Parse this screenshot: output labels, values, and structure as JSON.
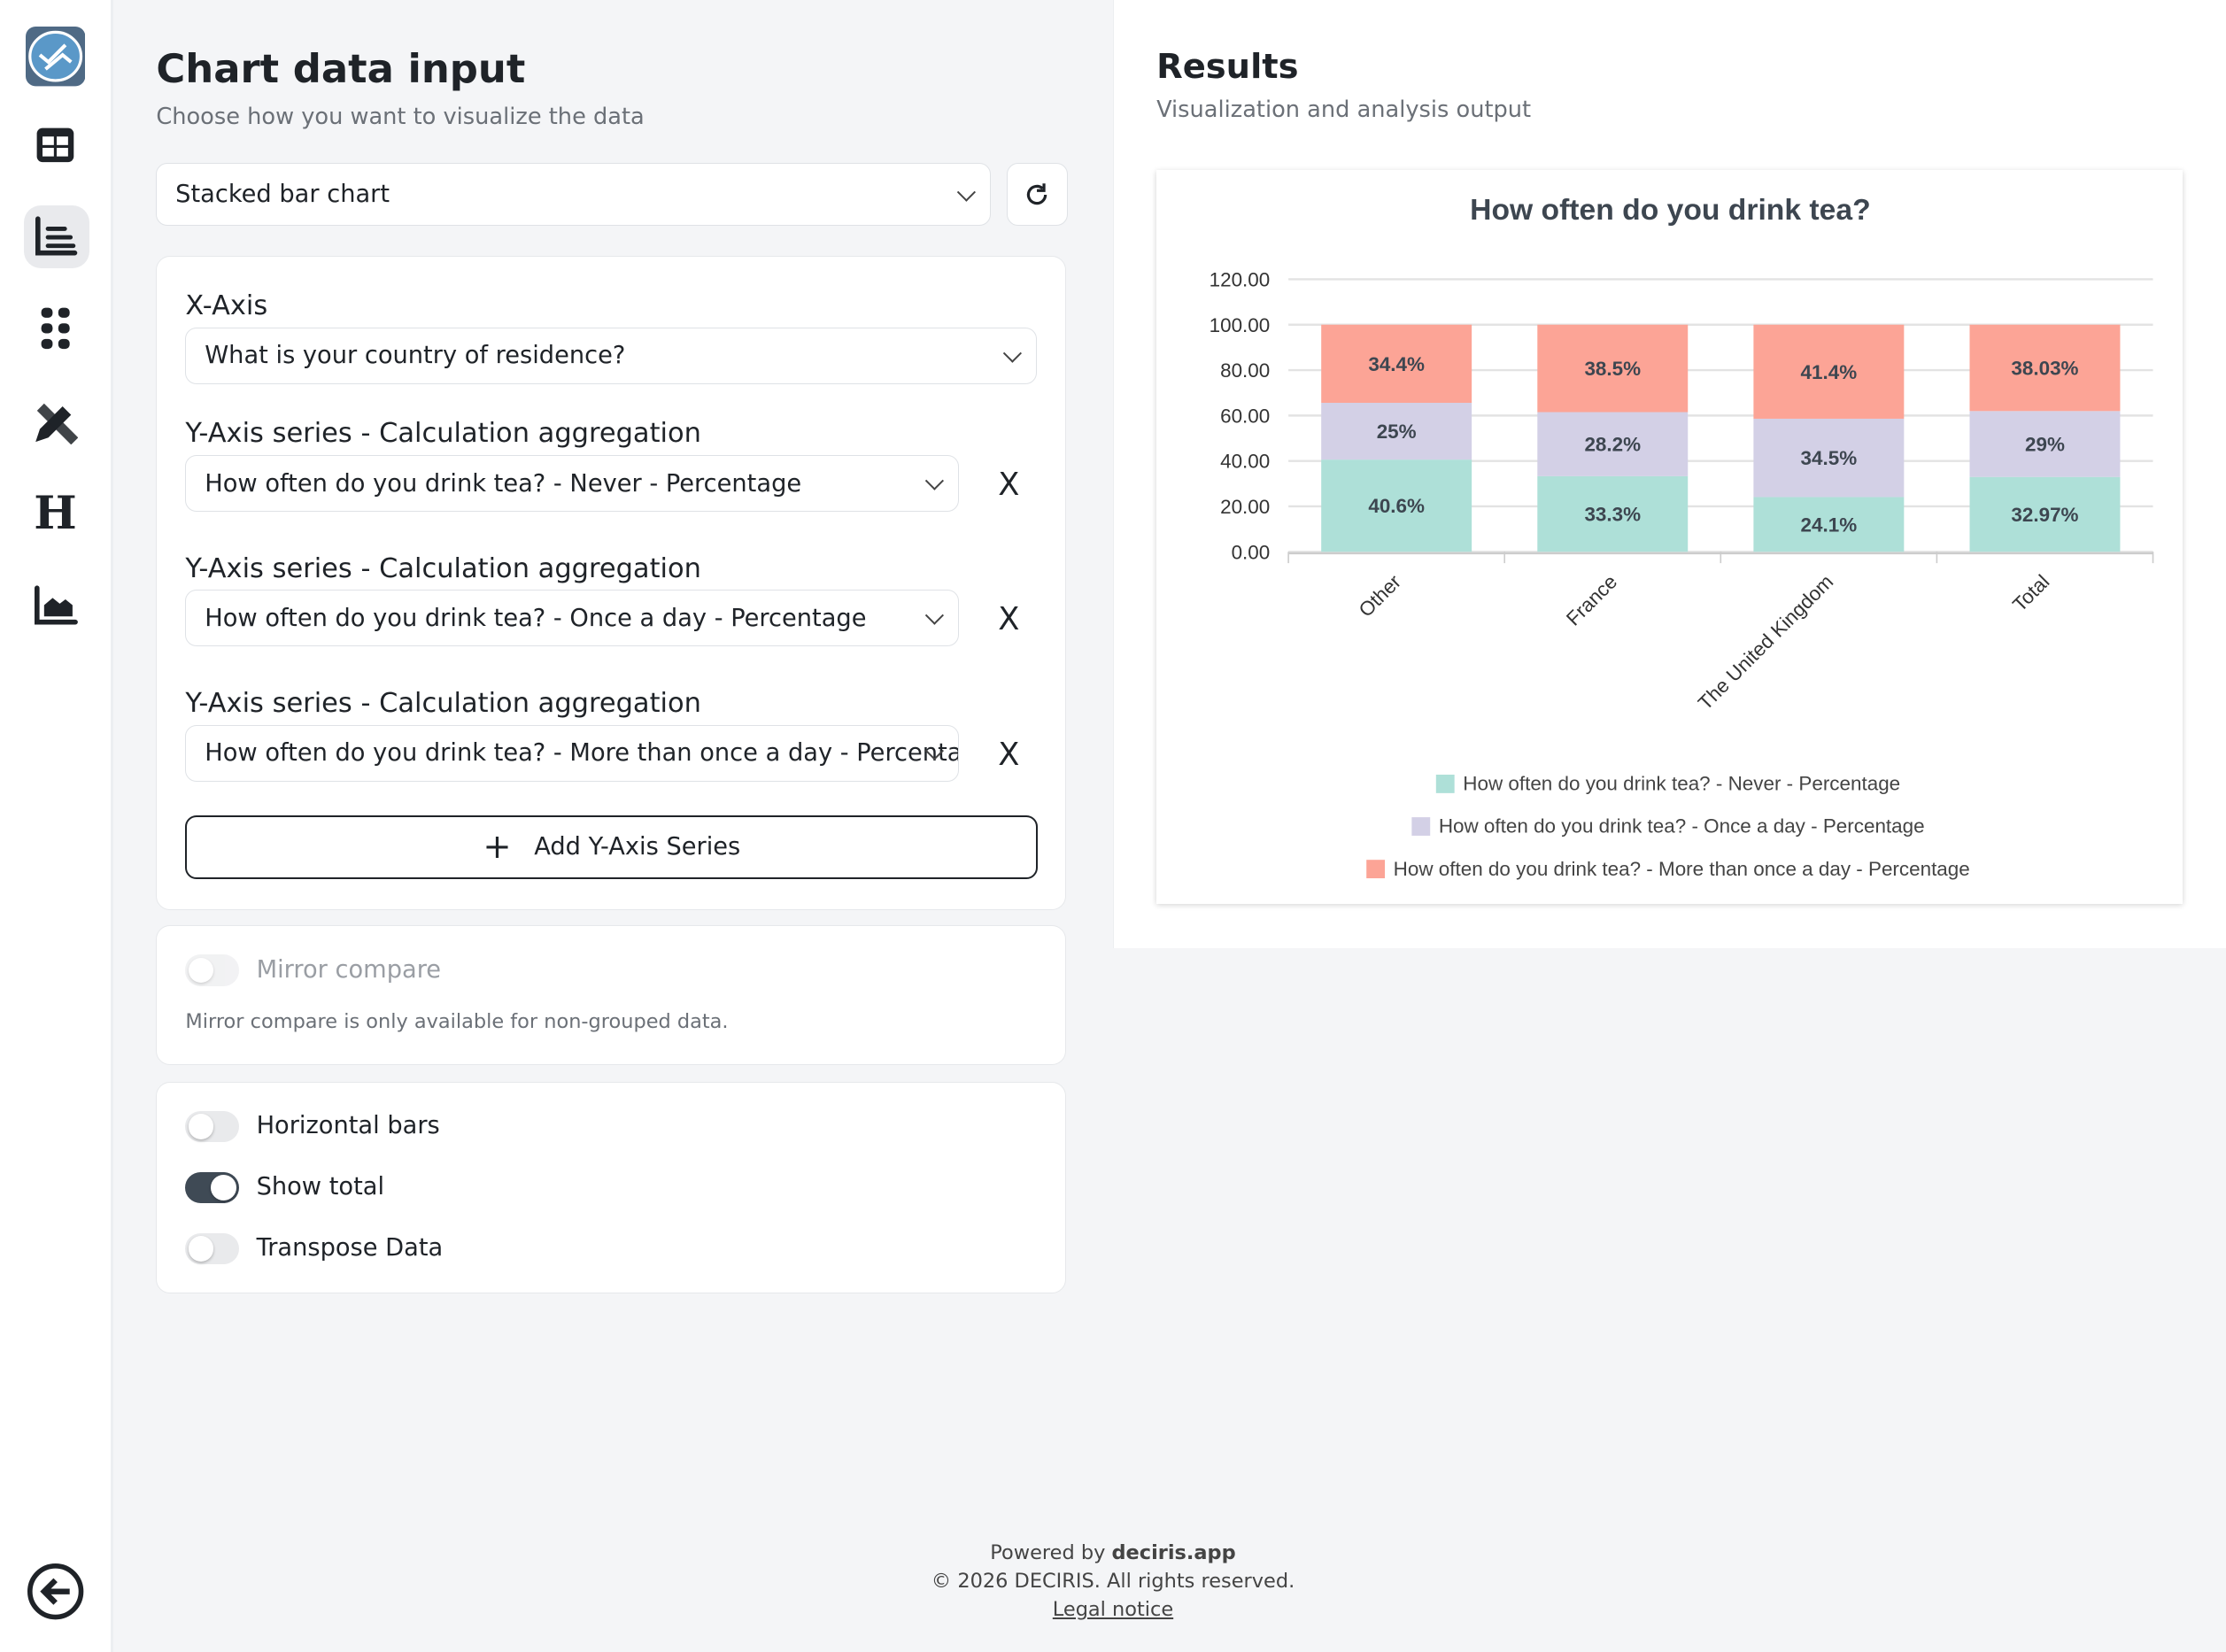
{
  "sidebar": {
    "items": [
      {
        "icon": "logo-icon"
      },
      {
        "icon": "table-icon"
      },
      {
        "icon": "bar-list-icon",
        "active": true
      },
      {
        "icon": "grid-dots-icon"
      },
      {
        "icon": "pencil-ruler-icon"
      },
      {
        "icon": "heading-icon"
      },
      {
        "icon": "area-chart-icon"
      }
    ],
    "back_icon": "back-arrow-icon"
  },
  "left": {
    "title": "Chart data input",
    "subtitle": "Choose how you want to visualize the data",
    "chart_type": "Stacked bar chart",
    "xaxis_label": "X-Axis",
    "xaxis_value": "What is your country of residence?",
    "series": [
      {
        "label": "Y-Axis series - Calculation aggregation",
        "value": "How often do you drink tea? - Never - Percentage"
      },
      {
        "label": "Y-Axis series - Calculation aggregation",
        "value": "How often do you drink tea? - Once a day - Percentage"
      },
      {
        "label": "Y-Axis series - Calculation aggregation",
        "value": "How often do you drink tea? - More than once a day - Percentage"
      }
    ],
    "add_series": "Add Y-Axis Series",
    "remove": "X",
    "mirror_label": "Mirror compare",
    "mirror_note": "Mirror compare is only available for non-grouped data.",
    "toggles": [
      {
        "label": "Horizontal bars",
        "on": false
      },
      {
        "label": "Show total",
        "on": true
      },
      {
        "label": "Transpose Data",
        "on": false
      }
    ]
  },
  "right": {
    "title": "Results",
    "subtitle": "Visualization and analysis output"
  },
  "chart_data": {
    "type": "bar",
    "stacked": true,
    "title": "How often do you drink tea?",
    "categories": [
      "Other",
      "France",
      "The United Kingdom",
      "Total"
    ],
    "series": [
      {
        "name": "How often do you drink tea? - Never - Percentage",
        "values": [
          40.6,
          33.3,
          24.1,
          32.97
        ],
        "labels": [
          "40.6%",
          "33.3%",
          "24.1%",
          "32.97%"
        ],
        "color": "#aee0d8"
      },
      {
        "name": "How often do you drink tea? - Once a day - Percentage",
        "values": [
          25,
          28.2,
          34.5,
          29
        ],
        "labels": [
          "25%",
          "28.2%",
          "34.5%",
          "29%"
        ],
        "color": "#d3d0e6"
      },
      {
        "name": "How often do you drink tea? - More than once a day - Percentage",
        "values": [
          34.4,
          38.5,
          41.4,
          38.03
        ],
        "labels": [
          "34.4%",
          "38.5%",
          "41.4%",
          "38.03%"
        ],
        "color": "#fca496"
      }
    ],
    "yticks": [
      "0.00",
      "20.00",
      "40.00",
      "60.00",
      "80.00",
      "100.00",
      "120.00"
    ],
    "ylim": [
      0,
      120
    ],
    "grid": true,
    "legend": "bottom"
  },
  "footer": {
    "powered": "Powered by ",
    "brand": "deciris.app",
    "copyright": "© 2026 DECIRIS. All rights reserved.",
    "legal": "Legal notice"
  }
}
